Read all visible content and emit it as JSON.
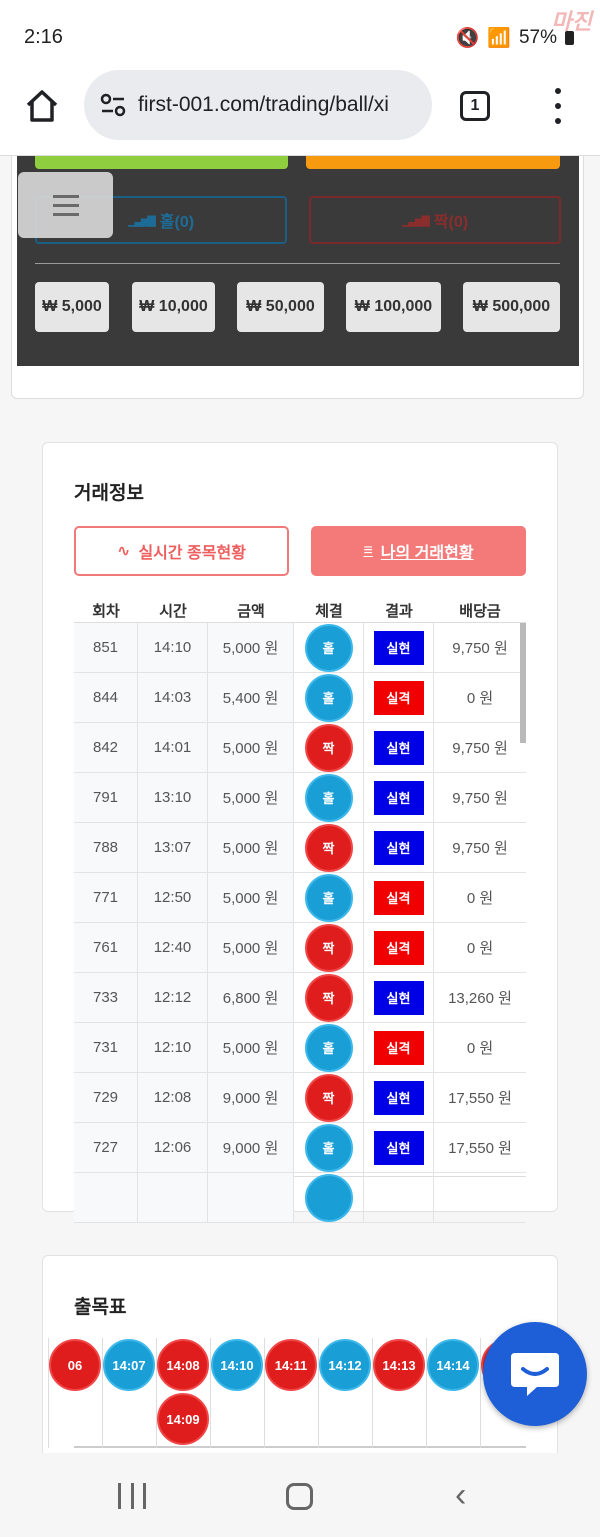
{
  "status_bar": {
    "time": "2:16",
    "battery": "57%",
    "watermark": "마진"
  },
  "browser": {
    "url": "first-001.com/trading/ball/xi",
    "tab_count": "1"
  },
  "bet_panel": {
    "odd_button": "홀(0)",
    "even_button": "짝(0)",
    "amounts": [
      "₩ 5,000",
      "₩ 10,000",
      "₩ 50,000",
      "₩ 100,000",
      "₩ 500,000"
    ]
  },
  "trading": {
    "title": "거래정보",
    "tab_realtime": "실시간 종목현황",
    "tab_mine": "나의 거래현황",
    "columns": [
      "회차",
      "시간",
      "금액",
      "체결",
      "결과",
      "배당금"
    ],
    "rows": [
      {
        "round": "851",
        "time": "14:10",
        "amount": "5,000 원",
        "pick": "홀",
        "result": "실현",
        "payout": "9,750 원"
      },
      {
        "round": "844",
        "time": "14:03",
        "amount": "5,400 원",
        "pick": "홀",
        "result": "실격",
        "payout": "0 원"
      },
      {
        "round": "842",
        "time": "14:01",
        "amount": "5,000 원",
        "pick": "짝",
        "result": "실현",
        "payout": "9,750 원"
      },
      {
        "round": "791",
        "time": "13:10",
        "amount": "5,000 원",
        "pick": "홀",
        "result": "실현",
        "payout": "9,750 원"
      },
      {
        "round": "788",
        "time": "13:07",
        "amount": "5,000 원",
        "pick": "짝",
        "result": "실현",
        "payout": "9,750 원"
      },
      {
        "round": "771",
        "time": "12:50",
        "amount": "5,000 원",
        "pick": "홀",
        "result": "실격",
        "payout": "0 원"
      },
      {
        "round": "761",
        "time": "12:40",
        "amount": "5,000 원",
        "pick": "짝",
        "result": "실격",
        "payout": "0 원"
      },
      {
        "round": "733",
        "time": "12:12",
        "amount": "6,800 원",
        "pick": "짝",
        "result": "실현",
        "payout": "13,260 원"
      },
      {
        "round": "731",
        "time": "12:10",
        "amount": "5,000 원",
        "pick": "홀",
        "result": "실격",
        "payout": "0 원"
      },
      {
        "round": "729",
        "time": "12:08",
        "amount": "9,000 원",
        "pick": "짝",
        "result": "실현",
        "payout": "17,550 원"
      },
      {
        "round": "727",
        "time": "12:06",
        "amount": "9,000 원",
        "pick": "홀",
        "result": "실현",
        "payout": "17,550 원"
      }
    ]
  },
  "results_board": {
    "title": "출목표",
    "columns": [
      {
        "balls": [
          {
            "label": "06",
            "kind": "even"
          }
        ]
      },
      {
        "balls": [
          {
            "label": "14:07",
            "kind": "odd"
          }
        ]
      },
      {
        "balls": [
          {
            "label": "14:08",
            "kind": "even"
          },
          {
            "label": "14:09",
            "kind": "even"
          }
        ]
      },
      {
        "balls": [
          {
            "label": "14:10",
            "kind": "odd"
          }
        ]
      },
      {
        "balls": [
          {
            "label": "14:11",
            "kind": "even"
          }
        ]
      },
      {
        "balls": [
          {
            "label": "14:12",
            "kind": "odd"
          }
        ]
      },
      {
        "balls": [
          {
            "label": "14:13",
            "kind": "even"
          }
        ]
      },
      {
        "balls": [
          {
            "label": "14:14",
            "kind": "odd"
          }
        ]
      },
      {
        "balls": [
          {
            "label": "",
            "kind": "even"
          }
        ]
      }
    ]
  },
  "colors": {
    "odd": "#1a9ed6",
    "even": "#e01d1d",
    "win": "#0000e6",
    "lose": "#f00000",
    "accent": "#f47a7a"
  }
}
